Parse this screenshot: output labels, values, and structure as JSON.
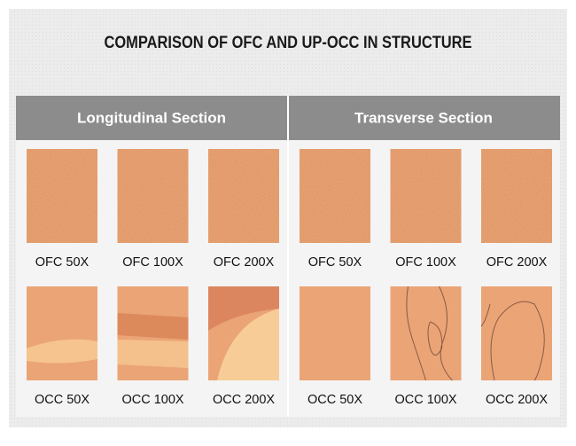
{
  "title": "COMPARISON OF OFC AND UP-OCC IN STRUCTURE",
  "sections": [
    {
      "title": "Longitudinal Section",
      "rows": [
        [
          "OFC 50X",
          "OFC 100X",
          "OFC 200X"
        ],
        [
          "OCC 50X",
          "OCC 100X",
          "OCC 200X"
        ]
      ]
    },
    {
      "title": "Transverse Section",
      "rows": [
        [
          "OFC 50X",
          "OFC 100X",
          "OFC 200X"
        ],
        [
          "OCC 50X",
          "OCC 100X",
          "OCC 200X"
        ]
      ]
    }
  ]
}
